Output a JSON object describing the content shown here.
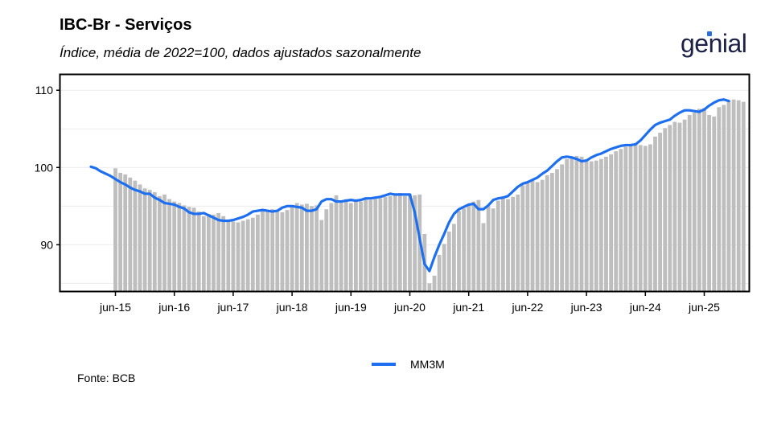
{
  "title": "IBC-Br - Serviços",
  "subtitle": "Índice, média de 2022=100, dados ajustados sazonalmente",
  "brand": "genial",
  "source": "Fonte: BCB",
  "colors": {
    "bars": "#bebebe",
    "line": "#1e6ff0",
    "grid": "#ebebeb",
    "axis": "#000000",
    "brand": "#1c2145"
  },
  "chart_data": {
    "type": "bar+line",
    "x_ticks": [
      "jun-15",
      "jun-16",
      "jun-17",
      "jun-18",
      "jun-19",
      "jun-20",
      "jun-21",
      "jun-22",
      "jun-23",
      "jun-24",
      "jun-25"
    ],
    "x_start": "jan-15",
    "y_ticks": [
      90,
      100,
      110
    ],
    "ylim": [
      84,
      112
    ],
    "legend": {
      "label": "MM3M",
      "position": "bottom"
    },
    "series": [
      {
        "kind": "bar",
        "values": [
          99.9,
          99.3,
          99.1,
          98.7,
          98.3,
          97.8,
          97.3,
          97.1,
          96.8,
          96.3,
          96.5,
          95.9,
          95.6,
          95.4,
          95.1,
          94.9,
          94.8,
          94.3,
          93.7,
          94.0,
          93.9,
          94.1,
          93.7,
          93.2,
          93.0,
          92.9,
          93.1,
          93.3,
          93.5,
          93.9,
          94.4,
          94.5,
          94.6,
          94.3,
          94.2,
          94.5,
          94.9,
          95.4,
          95.2,
          95.3,
          95.0,
          95.1,
          93.2,
          94.6,
          95.4,
          96.4,
          95.6,
          95.9,
          95.4,
          95.7,
          95.6,
          95.9,
          95.8,
          95.9,
          96.0,
          96.2,
          96.3,
          96.5,
          96.7,
          96.3,
          96.6,
          96.4,
          96.5,
          91.4,
          85.0,
          86.0,
          88.7,
          90.1,
          91.7,
          92.7,
          94.4,
          94.7,
          95.1,
          95.6,
          95.8,
          92.8,
          95.0,
          94.7,
          95.7,
          96.1,
          95.9,
          96.2,
          96.5,
          97.7,
          98.0,
          98.3,
          98.1,
          98.4,
          99.0,
          99.3,
          99.8,
          100.4,
          101.1,
          101.3,
          101.5,
          101.4,
          101.0,
          100.8,
          100.9,
          101.1,
          101.4,
          101.7,
          102.1,
          102.4,
          102.7,
          102.8,
          103.0,
          102.9,
          102.8,
          103.0,
          104.0,
          104.5,
          105.1,
          105.5,
          105.9,
          105.8,
          106.2,
          106.8,
          107.1,
          107.6,
          107.7,
          106.8,
          106.6,
          107.8,
          108.1,
          108.7,
          108.8,
          108.7,
          108.5
        ],
        "start_index": 5
      },
      {
        "kind": "line",
        "name": "MM3M",
        "values": [
          100.1,
          99.9,
          99.5,
          99.2,
          98.9,
          98.5,
          98.1,
          97.8,
          97.4,
          97.1,
          96.9,
          96.6,
          96.6,
          96.1,
          95.8,
          95.4,
          95.3,
          95.2,
          94.9,
          94.7,
          94.2,
          94.0,
          94.0,
          94.1,
          93.8,
          93.5,
          93.2,
          93.1,
          93.1,
          93.2,
          93.4,
          93.6,
          93.9,
          94.3,
          94.4,
          94.5,
          94.4,
          94.3,
          94.4,
          94.8,
          95.0,
          95.0,
          94.9,
          94.8,
          94.4,
          94.4,
          94.6,
          95.6,
          95.9,
          95.9,
          95.6,
          95.6,
          95.7,
          95.8,
          95.7,
          95.8,
          96.0,
          96.0,
          96.1,
          96.2,
          96.4,
          96.6,
          96.5,
          96.5,
          96.5,
          96.5,
          94.2,
          90.8,
          87.5,
          86.6,
          88.4,
          90.0,
          91.4,
          92.9,
          94.0,
          94.6,
          94.9,
          95.2,
          95.3,
          94.6,
          94.6,
          95.1,
          95.8,
          96.0,
          96.1,
          96.3,
          96.9,
          97.5,
          97.9,
          98.1,
          98.4,
          98.7,
          99.2,
          99.6,
          100.2,
          100.8,
          101.3,
          101.4,
          101.3,
          101.1,
          100.8,
          100.9,
          101.3,
          101.6,
          101.8,
          102.1,
          102.4,
          102.6,
          102.8,
          102.9,
          102.9,
          103.0,
          103.5,
          104.2,
          104.9,
          105.5,
          105.8,
          106.0,
          106.2,
          106.7,
          107.1,
          107.4,
          107.4,
          107.3,
          107.2,
          107.5,
          108.0,
          108.4,
          108.7,
          108.8,
          108.6
        ],
        "start_index": 0
      }
    ]
  }
}
